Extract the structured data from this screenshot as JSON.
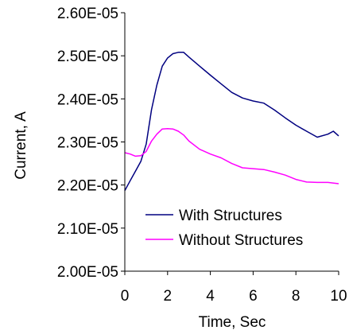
{
  "chart_data": {
    "type": "line",
    "title": "",
    "xlabel": "Time, Sec",
    "ylabel": "Current, A",
    "xlim": [
      0,
      10
    ],
    "ylim": [
      2e-05,
      2.6e-05
    ],
    "x_ticks": [
      "0",
      "2",
      "4",
      "6",
      "8",
      "10"
    ],
    "x_tick_values": [
      0,
      2,
      4,
      6,
      8,
      10
    ],
    "y_ticks": [
      "2.00E-05",
      "2.10E-05",
      "2.20E-05",
      "2.30E-05",
      "2.40E-05",
      "2.50E-05",
      "2.60E-05"
    ],
    "y_tick_values": [
      2e-05,
      2.1e-05,
      2.2e-05,
      2.3e-05,
      2.4e-05,
      2.5e-05,
      2.6e-05
    ],
    "grid": false,
    "legend_position": "bottom-right",
    "series": [
      {
        "name": "With Structures",
        "color": "#000080",
        "x": [
          0,
          0.25,
          0.5,
          0.75,
          1.0,
          1.25,
          1.5,
          1.75,
          2.0,
          2.25,
          2.5,
          2.75,
          3.0,
          3.5,
          4.0,
          4.5,
          5.0,
          5.5,
          6.0,
          6.5,
          7.0,
          7.5,
          8.0,
          8.5,
          9.0,
          9.5,
          9.75,
          10.0
        ],
        "y": [
          2.187e-05,
          2.21e-05,
          2.232e-05,
          2.255e-05,
          2.295e-05,
          2.375e-05,
          2.432e-05,
          2.476e-05,
          2.495e-05,
          2.505e-05,
          2.508e-05,
          2.508e-05,
          2.497e-05,
          2.476e-05,
          2.455e-05,
          2.435e-05,
          2.415e-05,
          2.402e-05,
          2.395e-05,
          2.39e-05,
          2.374e-05,
          2.356e-05,
          2.339e-05,
          2.325e-05,
          2.311e-05,
          2.318e-05,
          2.325e-05,
          2.314e-05
        ]
      },
      {
        "name": "Without Structures",
        "color": "#ff00ff",
        "x": [
          0,
          0.25,
          0.5,
          0.75,
          1.0,
          1.25,
          1.5,
          1.75,
          2.0,
          2.25,
          2.5,
          2.75,
          3.0,
          3.5,
          4.0,
          4.5,
          5.0,
          5.5,
          6.0,
          6.5,
          7.0,
          7.5,
          8.0,
          8.5,
          9.0,
          9.5,
          10.0
        ],
        "y": [
          2.275e-05,
          2.272e-05,
          2.267e-05,
          2.268e-05,
          2.278e-05,
          2.302e-05,
          2.318e-05,
          2.33e-05,
          2.331e-05,
          2.33e-05,
          2.325e-05,
          2.316e-05,
          2.302e-05,
          2.283e-05,
          2.272e-05,
          2.263e-05,
          2.25e-05,
          2.24e-05,
          2.238e-05,
          2.236e-05,
          2.23e-05,
          2.223e-05,
          2.213e-05,
          2.207e-05,
          2.206e-05,
          2.206e-05,
          2.203e-05
        ]
      }
    ]
  }
}
